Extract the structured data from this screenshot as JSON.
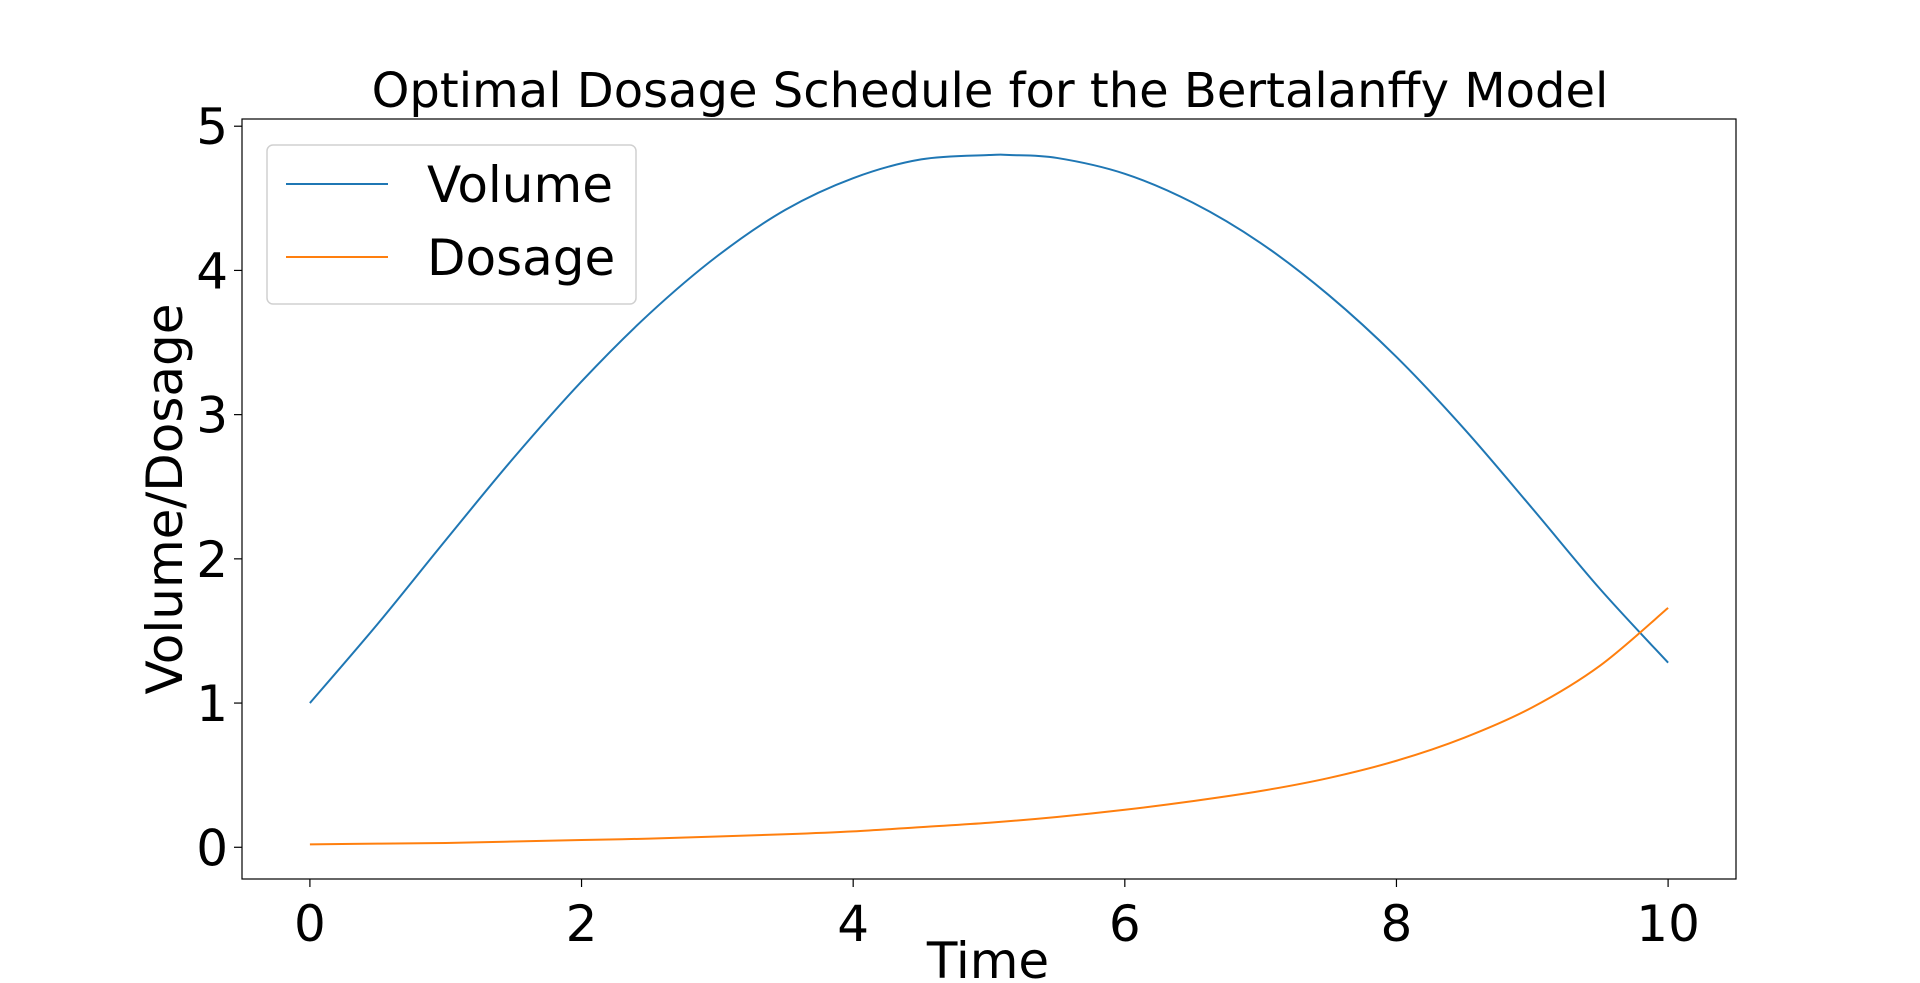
{
  "chart_data": {
    "type": "line",
    "title": "Optimal Dosage Schedule for the Bertalanffy Model",
    "xlabel": "Time",
    "ylabel": "Volume/Dosage",
    "xlim": [
      -0.5,
      10.5
    ],
    "ylim": [
      -0.22,
      5.05
    ],
    "xticks": [
      0,
      2,
      4,
      6,
      8,
      10
    ],
    "xtick_labels": [
      "0",
      "2",
      "4",
      "6",
      "8",
      "10"
    ],
    "yticks": [
      0,
      1,
      2,
      3,
      4,
      5
    ],
    "ytick_labels": [
      "0",
      "1",
      "2",
      "3",
      "4",
      "5"
    ],
    "grid": false,
    "legend_position": "upper-left",
    "series": [
      {
        "name": "Volume",
        "color": "#1f77b4",
        "x": [
          0,
          0.5,
          1,
          1.5,
          2,
          2.5,
          3,
          3.5,
          4,
          4.5,
          5,
          5.15,
          5.5,
          6,
          6.5,
          7,
          7.5,
          8,
          8.5,
          9,
          9.5,
          10
        ],
        "y": [
          1.0,
          1.55,
          2.13,
          2.7,
          3.23,
          3.7,
          4.1,
          4.42,
          4.64,
          4.77,
          4.8,
          4.8,
          4.78,
          4.67,
          4.47,
          4.19,
          3.83,
          3.4,
          2.9,
          2.35,
          1.79,
          1.28
        ]
      },
      {
        "name": "Dosage",
        "color": "#ff7f0e",
        "x": [
          0,
          0.5,
          1,
          1.5,
          2,
          2.5,
          3,
          3.5,
          4,
          4.5,
          5,
          5.5,
          6,
          6.5,
          7,
          7.5,
          8,
          8.5,
          9,
          9.5,
          10
        ],
        "y": [
          0.02,
          0.025,
          0.03,
          0.04,
          0.05,
          0.06,
          0.075,
          0.09,
          0.11,
          0.14,
          0.17,
          0.21,
          0.26,
          0.32,
          0.39,
          0.48,
          0.6,
          0.76,
          0.97,
          1.26,
          1.66
        ]
      }
    ]
  }
}
